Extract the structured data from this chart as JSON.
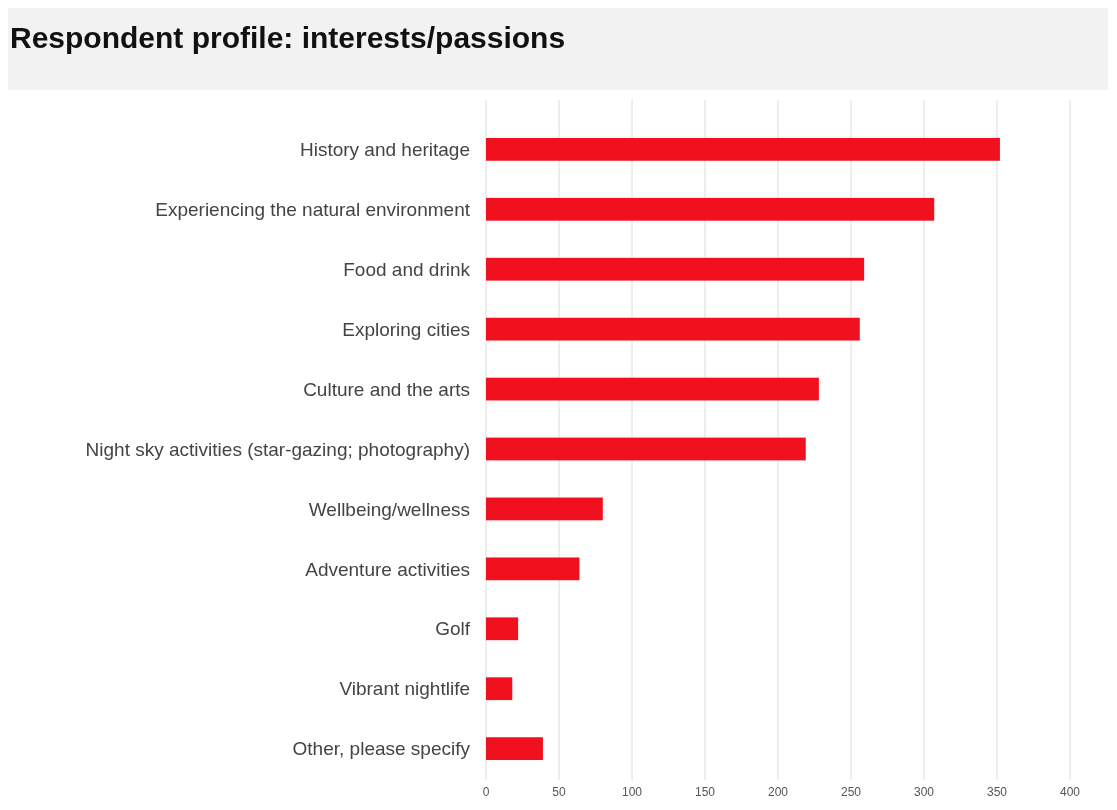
{
  "chart_data": {
    "type": "bar",
    "orientation": "horizontal",
    "title": "Respondent profile: interests/passions",
    "categories": [
      "History and heritage",
      "Experiencing the natural environment",
      "Food and drink",
      "Exploring cities",
      "Culture and the arts",
      "Night sky activities (star-gazing; photography)",
      "Wellbeing/wellness",
      "Adventure activities",
      "Golf",
      "Vibrant nightlife",
      "Other, please specify"
    ],
    "values": [
      352,
      307,
      259,
      256,
      228,
      219,
      80,
      64,
      22,
      18,
      39
    ],
    "color": "#f0101e",
    "xlim": [
      0,
      400
    ],
    "xticks": [
      0,
      50,
      100,
      150,
      200,
      250,
      300,
      350,
      400
    ],
    "grid": "x"
  }
}
